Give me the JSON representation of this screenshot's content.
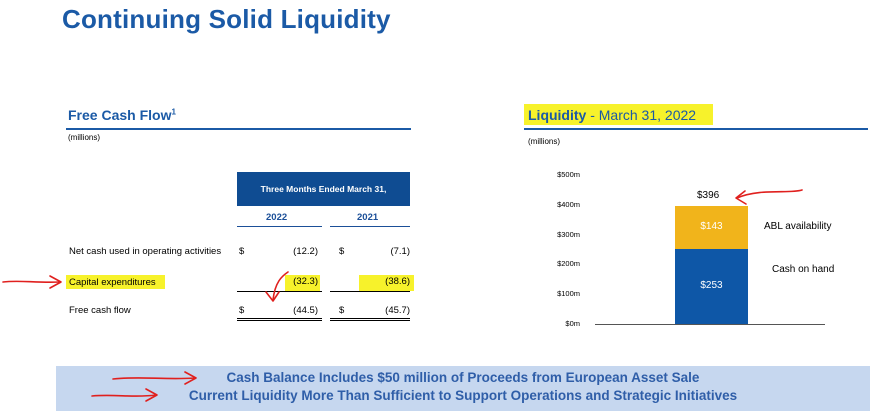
{
  "title": "Continuing Solid Liquidity",
  "fcf": {
    "title": "Free Cash Flow",
    "title_sup": "1",
    "units": "(millions)",
    "header": "Three Months Ended March 31,",
    "years": [
      "2022",
      "2021"
    ],
    "rows": [
      {
        "label": "Net cash used in operating activities",
        "c1": "$",
        "v1": "(12.2)",
        "c2": "$",
        "v2": "(7.1)"
      },
      {
        "label": "Capital expenditures",
        "c1": "",
        "v1": "(32.3)",
        "c2": "",
        "v2": "(38.6)"
      },
      {
        "label": "Free cash flow",
        "c1": "$",
        "v1": "(44.5)",
        "c2": "$",
        "v2": "(45.7)"
      }
    ],
    "highlight_color": "#f7f22b"
  },
  "liquidity": {
    "title_bold": "Liquidity",
    "title_rest": " - March 31, 2022",
    "units": "(millions)",
    "total_label": "$396",
    "colors": {
      "cash": "#0e57a7",
      "abl": "#f1b41b"
    }
  },
  "chart_data": {
    "type": "bar",
    "stacked": true,
    "categories": [
      ""
    ],
    "series": [
      {
        "name": "Cash on hand",
        "values": [
          253
        ],
        "label": "$253"
      },
      {
        "name": "ABL availability",
        "values": [
          143
        ],
        "label": "$143"
      }
    ],
    "total": 396,
    "ylim": [
      0,
      500
    ],
    "yticks": [
      "$0m",
      "$100m",
      "$200m",
      "$300m",
      "$400m",
      "$500m"
    ],
    "grid": false
  },
  "banner": {
    "line1": "Cash Balance Includes $50 million of Proceeds from European Asset Sale",
    "line2": "Current Liquidity More Than Sufficient to Support Operations and Strategic Initiatives",
    "arrow_color": "#e0201e"
  }
}
